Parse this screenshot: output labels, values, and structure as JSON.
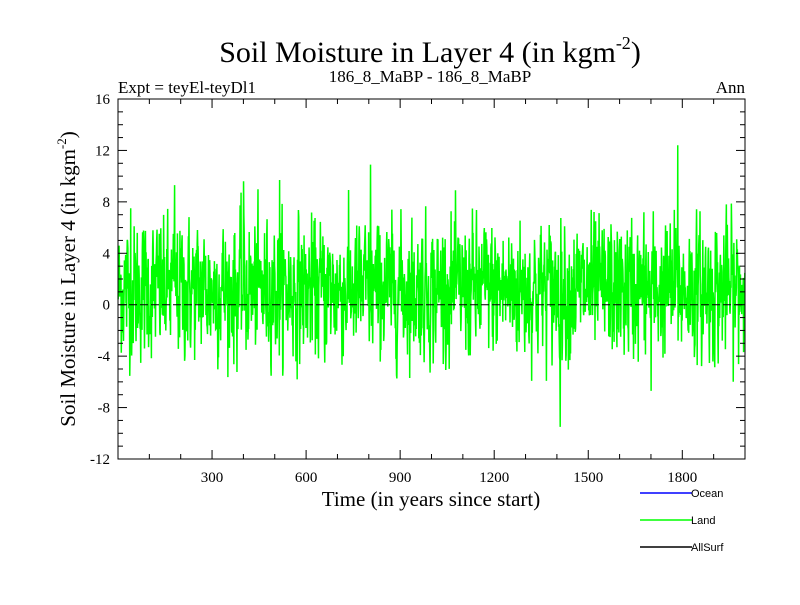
{
  "chart_data": {
    "type": "line",
    "title": "Soil Moisture in Layer 4 (in kgm",
    "title_sup": "-2",
    "title_close": ")",
    "subtitle_left": "Expt = teyEl-teyDl1",
    "subtitle_center": "186_8_MaBP - 186_8_MaBP",
    "subtitle_right": "Ann",
    "xlabel": "Time (in years since start)",
    "ylabel": "Soil Moisture in Layer 4 (in kgm",
    "ylabel_sup": "-2",
    "ylabel_close": ")",
    "xlim": [
      0,
      2000
    ],
    "ylim": [
      -12,
      16
    ],
    "xticks": [
      300,
      600,
      900,
      1200,
      1500,
      1800
    ],
    "yticks": [
      -12,
      -8,
      -4,
      0,
      4,
      8,
      12,
      16
    ],
    "reference_line": 0,
    "series": [
      {
        "name": "Ocean",
        "color": "#0000ff",
        "values": []
      },
      {
        "name": "Land",
        "color": "#00ff00",
        "mean": 1.2,
        "std": 2.6,
        "min": -9.5,
        "max": 12.4,
        "peaks": [
          [
            40,
            7.5
          ],
          [
            180,
            9.3
          ],
          [
            400,
            9.6
          ],
          [
            515,
            9.7
          ],
          [
            805,
            10.9
          ],
          [
            1410,
            -9.5
          ],
          [
            1785,
            12.4
          ],
          [
            1700,
            -6.7
          ]
        ]
      },
      {
        "name": "AllSurf",
        "color": "#000000",
        "values": []
      }
    ]
  }
}
